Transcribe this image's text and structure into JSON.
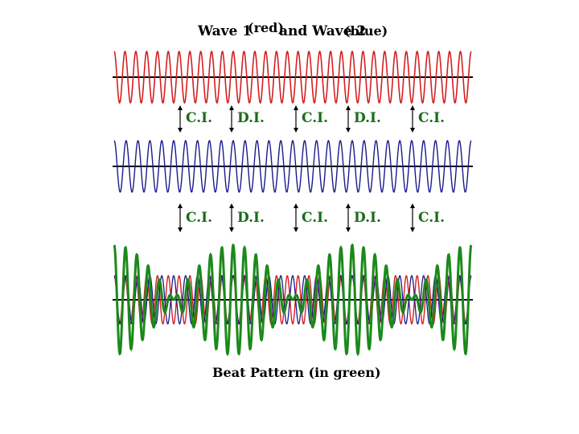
{
  "title": {
    "part1": "Wave 1",
    "part2": "(red)",
    "part3": "and Wave 2",
    "part4": "(blue)"
  },
  "interference_row1": [
    "C.I.",
    "D.I.",
    "C.I.",
    "D.I.",
    "C.I."
  ],
  "interference_row2": [
    "C.I.",
    "D.I.",
    "C.I.",
    "D.I.",
    "C.I."
  ],
  "caption": "Beat Pattern (in green)",
  "colors": {
    "wave1": "#d42020",
    "wave2": "#1a1a8c",
    "beat": "#1a8a1a",
    "axis": "#000000",
    "label": "#1a6b1a"
  },
  "waves": {
    "wave1_cycles": 33,
    "wave2_cycles": 30
  }
}
